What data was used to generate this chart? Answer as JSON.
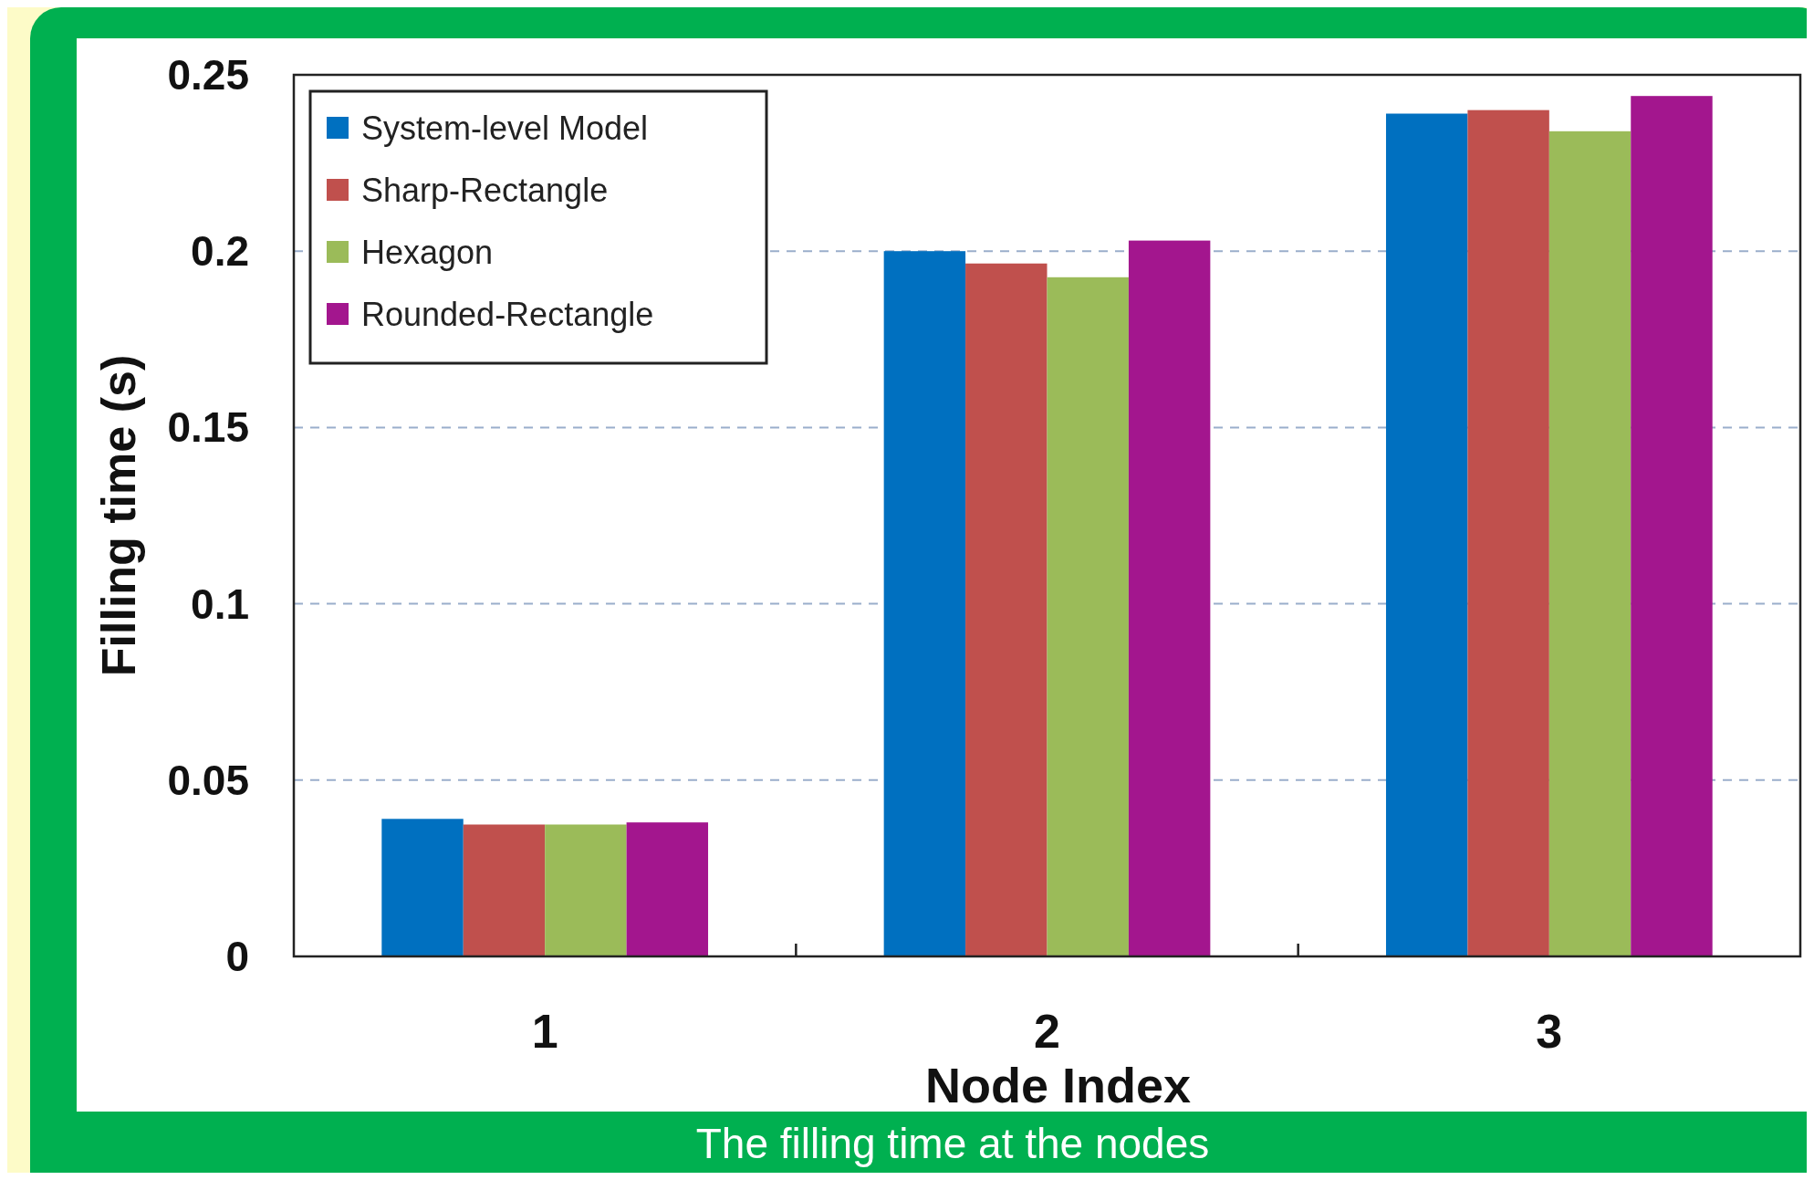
{
  "chart_data": {
    "type": "bar",
    "xlabel": "Node Index",
    "ylabel": "Filling time (s)",
    "categories": [
      "1",
      "2",
      "3"
    ],
    "series": [
      {
        "name": "System-level Model",
        "color": "#0070c0",
        "values": [
          0.039,
          0.2,
          0.239
        ]
      },
      {
        "name": "Sharp-Rectangle",
        "color": "#c0504d",
        "values": [
          0.0374,
          0.1965,
          0.24
        ]
      },
      {
        "name": "Hexagon",
        "color": "#9bbb59",
        "values": [
          0.0374,
          0.1926,
          0.234
        ]
      },
      {
        "name": "Rounded-Rectangle",
        "color": "#a3168e",
        "values": [
          0.038,
          0.203,
          0.244
        ]
      }
    ],
    "ylim": [
      0,
      0.25
    ],
    "yticks": [
      0,
      0.05,
      0.1,
      0.15,
      0.2,
      0.25
    ],
    "grid": "y",
    "legend": "top left",
    "annotations": [
      "The filling time at the nodes"
    ]
  }
}
